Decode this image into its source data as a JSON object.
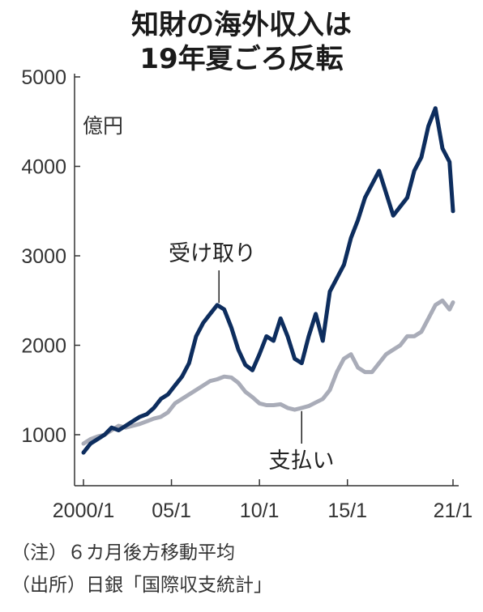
{
  "chart_data": {
    "type": "line",
    "title_lines": [
      "知財の海外収入は",
      "19年夏ごろ反転"
    ],
    "ylabel": "億円",
    "ylim": [
      500,
      5000
    ],
    "xlim": [
      2000.0,
      2021.0
    ],
    "yticks": [
      1000,
      2000,
      3000,
      4000,
      5000
    ],
    "xticks": [
      {
        "label": "2000/1",
        "value": 2000.0
      },
      {
        "label": "05/1",
        "value": 2005.0
      },
      {
        "label": "10/1",
        "value": 2010.0
      },
      {
        "label": "15/1",
        "value": 2015.0
      },
      {
        "label": "21/1",
        "value": 2021.0
      }
    ],
    "grid": false,
    "series": [
      {
        "name": "受け取り",
        "color": "#0d2d5e",
        "x": [
          2000.0,
          2000.4,
          2000.8,
          2001.2,
          2001.6,
          2002.0,
          2002.4,
          2002.8,
          2003.2,
          2003.6,
          2004.0,
          2004.4,
          2004.8,
          2005.2,
          2005.6,
          2006.0,
          2006.4,
          2006.8,
          2007.2,
          2007.6,
          2008.0,
          2008.4,
          2008.8,
          2009.2,
          2009.6,
          2010.0,
          2010.4,
          2010.8,
          2011.2,
          2011.6,
          2012.0,
          2012.4,
          2012.8,
          2013.2,
          2013.6,
          2014.0,
          2014.4,
          2014.8,
          2015.2,
          2015.6,
          2016.0,
          2016.4,
          2016.8,
          2017.2,
          2017.6,
          2018.0,
          2018.4,
          2018.8,
          2019.2,
          2019.6,
          2020.0,
          2020.4,
          2020.8,
          2021.0
        ],
        "values": [
          800,
          900,
          950,
          1000,
          1080,
          1050,
          1100,
          1150,
          1200,
          1230,
          1300,
          1400,
          1450,
          1550,
          1650,
          1800,
          2100,
          2250,
          2350,
          2450,
          2400,
          2200,
          1950,
          1780,
          1720,
          1900,
          2100,
          2050,
          2300,
          2100,
          1850,
          1800,
          2100,
          2350,
          2050,
          2600,
          2750,
          2900,
          3200,
          3400,
          3650,
          3800,
          3950,
          3700,
          3450,
          3550,
          3650,
          3950,
          4100,
          4450,
          4650,
          4200,
          4050,
          3500
        ],
        "label_x": 2007.7
      },
      {
        "name": "支払い",
        "color": "#a9acb8",
        "x": [
          2000.0,
          2000.4,
          2000.8,
          2001.2,
          2001.6,
          2002.0,
          2002.4,
          2002.8,
          2003.2,
          2003.6,
          2004.0,
          2004.4,
          2004.8,
          2005.2,
          2005.6,
          2006.0,
          2006.4,
          2006.8,
          2007.2,
          2007.6,
          2008.0,
          2008.4,
          2008.8,
          2009.2,
          2009.6,
          2010.0,
          2010.4,
          2010.8,
          2011.2,
          2011.6,
          2012.0,
          2012.4,
          2012.8,
          2013.2,
          2013.6,
          2014.0,
          2014.4,
          2014.8,
          2015.2,
          2015.6,
          2016.0,
          2016.4,
          2016.8,
          2017.2,
          2017.6,
          2018.0,
          2018.4,
          2018.8,
          2019.2,
          2019.6,
          2020.0,
          2020.4,
          2020.8,
          2021.0
        ],
        "values": [
          900,
          950,
          980,
          1000,
          1050,
          1100,
          1080,
          1100,
          1120,
          1150,
          1180,
          1200,
          1250,
          1350,
          1400,
          1450,
          1500,
          1550,
          1600,
          1620,
          1650,
          1640,
          1580,
          1480,
          1420,
          1350,
          1330,
          1330,
          1340,
          1300,
          1280,
          1300,
          1320,
          1360,
          1400,
          1500,
          1700,
          1850,
          1900,
          1750,
          1700,
          1700,
          1800,
          1900,
          1950,
          2000,
          2100,
          2100,
          2150,
          2300,
          2450,
          2500,
          2400,
          2480
        ],
        "label_x": 2012.4
      }
    ]
  },
  "notes": [
    "（注）６カ月後方移動平均",
    "（出所）日銀「国際収支統計」"
  ]
}
